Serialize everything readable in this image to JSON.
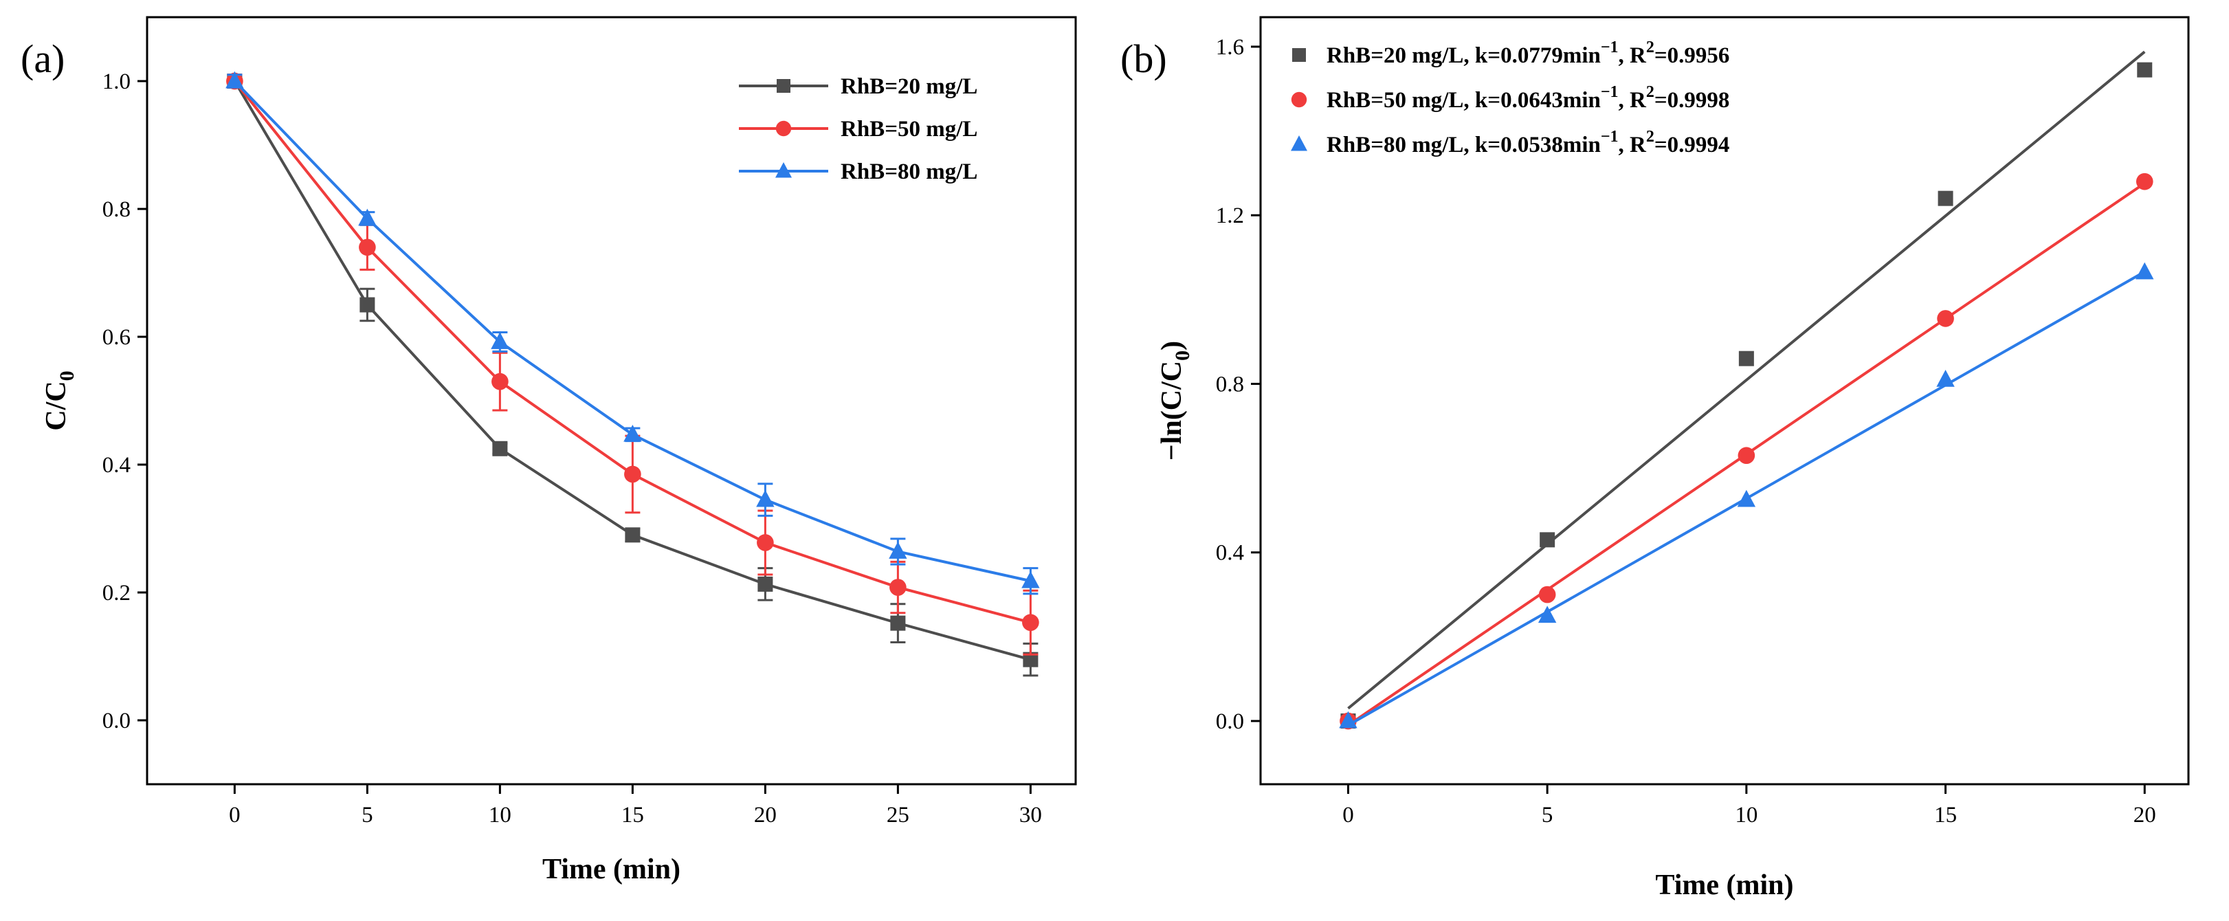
{
  "chart_data": [
    {
      "panel": "(a)",
      "type": "line",
      "xlabel": "Time (min)",
      "ylabel": "C/C",
      "ylabel_sub": "0",
      "xlim": [
        -3.3,
        31.7
      ],
      "ylim": [
        -0.1,
        1.1
      ],
      "xticks": [
        0,
        5,
        10,
        15,
        20,
        25,
        30
      ],
      "yticks": [
        0.0,
        0.2,
        0.4,
        0.6,
        0.8,
        1.0
      ],
      "ytick_decimals": 1,
      "legend_position": "top-right",
      "legend_style": "line-marker",
      "series": [
        {
          "name": "RhB=20 mg/L",
          "color": "#4d4d4d",
          "marker": "square",
          "x": [
            0,
            5,
            10,
            15,
            20,
            25,
            30
          ],
          "values": [
            1.0,
            0.65,
            0.425,
            0.29,
            0.213,
            0.152,
            0.095
          ],
          "errors": [
            0.01,
            0.025,
            0.008,
            0.01,
            0.025,
            0.03,
            0.025
          ]
        },
        {
          "name": "RhB=50 mg/L",
          "color": "#f03c3c",
          "marker": "circle",
          "x": [
            0,
            5,
            10,
            15,
            20,
            25,
            30
          ],
          "values": [
            1.0,
            0.74,
            0.53,
            0.385,
            0.278,
            0.208,
            0.153
          ],
          "errors": [
            0.01,
            0.035,
            0.045,
            0.06,
            0.05,
            0.04,
            0.05
          ]
        },
        {
          "name": "RhB=80 mg/L",
          "color": "#2b7ce8",
          "marker": "triangle",
          "x": [
            0,
            5,
            10,
            15,
            20,
            25,
            30
          ],
          "values": [
            1.0,
            0.785,
            0.592,
            0.447,
            0.345,
            0.264,
            0.218
          ],
          "errors": [
            0.01,
            0.01,
            0.015,
            0.01,
            0.025,
            0.02,
            0.02
          ]
        }
      ]
    },
    {
      "panel": "(b)",
      "type": "scatter",
      "xlabel": "Time (min)",
      "ylabel": "−ln(C/C",
      "ylabel_sub": "0",
      "ylabel_end": ")",
      "xlim": [
        -2.2,
        21.1
      ],
      "ylim": [
        -0.15,
        1.67
      ],
      "xticks": [
        0,
        5,
        10,
        15,
        20
      ],
      "yticks": [
        0.0,
        0.4,
        0.8,
        1.2,
        1.6
      ],
      "ytick_decimals": 1,
      "legend_position": "top-left",
      "legend_style": "marker",
      "series": [
        {
          "name": "RhB=20 mg/L, k=0.0779min",
          "sup1": "−1",
          "mid": ", R",
          "sup2": "2",
          "tail": "=0.9956",
          "color": "#4d4d4d",
          "marker": "square",
          "x": [
            0,
            5,
            10,
            15,
            20
          ],
          "values": [
            0.0,
            0.43,
            0.86,
            1.24,
            1.545
          ],
          "fit": {
            "slope": 0.0779,
            "intercept": 0.03
          }
        },
        {
          "name": "RhB=50 mg/L, k=0.0643min",
          "sup1": "−1",
          "mid": ", R",
          "sup2": "2",
          "tail": "=0.9998",
          "color": "#f03c3c",
          "marker": "circle",
          "x": [
            0,
            5,
            10,
            15,
            20
          ],
          "values": [
            0.0,
            0.3,
            0.63,
            0.955,
            1.28
          ],
          "fit": {
            "slope": 0.0643,
            "intercept": -0.01
          }
        },
        {
          "name": "RhB=80 mg/L, k=0.0538min",
          "sup1": "−1",
          "mid": ", R",
          "sup2": "2",
          "tail": "=0.9994",
          "color": "#2b7ce8",
          "marker": "triangle",
          "x": [
            0,
            5,
            10,
            15,
            20
          ],
          "values": [
            0.0,
            0.25,
            0.525,
            0.81,
            1.065
          ],
          "fit": {
            "slope": 0.0538,
            "intercept": -0.01
          }
        }
      ]
    }
  ]
}
